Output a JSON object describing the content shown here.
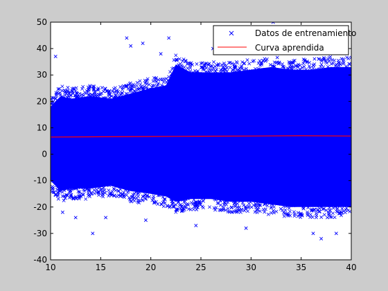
{
  "chart_data": {
    "type": "scatter",
    "title": "",
    "xlabel": "",
    "ylabel": "",
    "xlim": [
      10,
      40
    ],
    "ylim": [
      -40,
      50
    ],
    "xticks": [
      10,
      15,
      20,
      25,
      30,
      35,
      40
    ],
    "yticks": [
      -40,
      -30,
      -20,
      -10,
      0,
      10,
      20,
      30,
      40,
      50
    ],
    "grid": false,
    "legend_position": "top-right",
    "series": [
      {
        "name": "Datos de entrenamiento",
        "kind": "scatter",
        "marker": "x",
        "color": "#0000ff",
        "band": {
          "x": [
            10,
            11,
            12,
            14,
            16,
            18,
            20,
            21.5,
            22.5,
            24,
            26,
            28,
            30,
            32,
            34,
            36,
            38,
            40
          ],
          "y_upper": [
            22,
            26,
            25,
            26,
            25,
            27,
            29,
            30,
            38,
            35,
            35,
            35,
            36,
            37,
            36,
            36,
            37,
            37
          ],
          "y_lower": [
            -14,
            -18,
            -17,
            -17,
            -16,
            -18,
            -19,
            -20,
            -22,
            -21,
            -21,
            -22,
            -22,
            -23,
            -24,
            -24,
            -24,
            -24
          ]
        },
        "outliers": [
          {
            "x": 10.5,
            "y": 37
          },
          {
            "x": 14.2,
            "y": -30
          },
          {
            "x": 17.6,
            "y": 44
          },
          {
            "x": 18.0,
            "y": 41
          },
          {
            "x": 19.2,
            "y": 42
          },
          {
            "x": 21.0,
            "y": 38
          },
          {
            "x": 21.8,
            "y": 44
          },
          {
            "x": 32.2,
            "y": 50
          },
          {
            "x": 37.0,
            "y": -32
          },
          {
            "x": 34.5,
            "y": 42
          },
          {
            "x": 26.2,
            "y": 40
          },
          {
            "x": 33.0,
            "y": 44
          },
          {
            "x": 15.5,
            "y": -24
          },
          {
            "x": 12.5,
            "y": -24
          },
          {
            "x": 24.5,
            "y": -27
          },
          {
            "x": 29.5,
            "y": -28
          },
          {
            "x": 36.2,
            "y": -30
          },
          {
            "x": 38.5,
            "y": -30
          },
          {
            "x": 19.5,
            "y": -25
          },
          {
            "x": 11.2,
            "y": -22
          }
        ]
      },
      {
        "name": "Curva aprendida",
        "kind": "line",
        "color": "#ff0000",
        "x": [
          10,
          15,
          20,
          25,
          30,
          35,
          40
        ],
        "y": [
          6.5,
          6.6,
          6.7,
          6.8,
          6.9,
          7.0,
          6.9
        ]
      }
    ]
  }
}
